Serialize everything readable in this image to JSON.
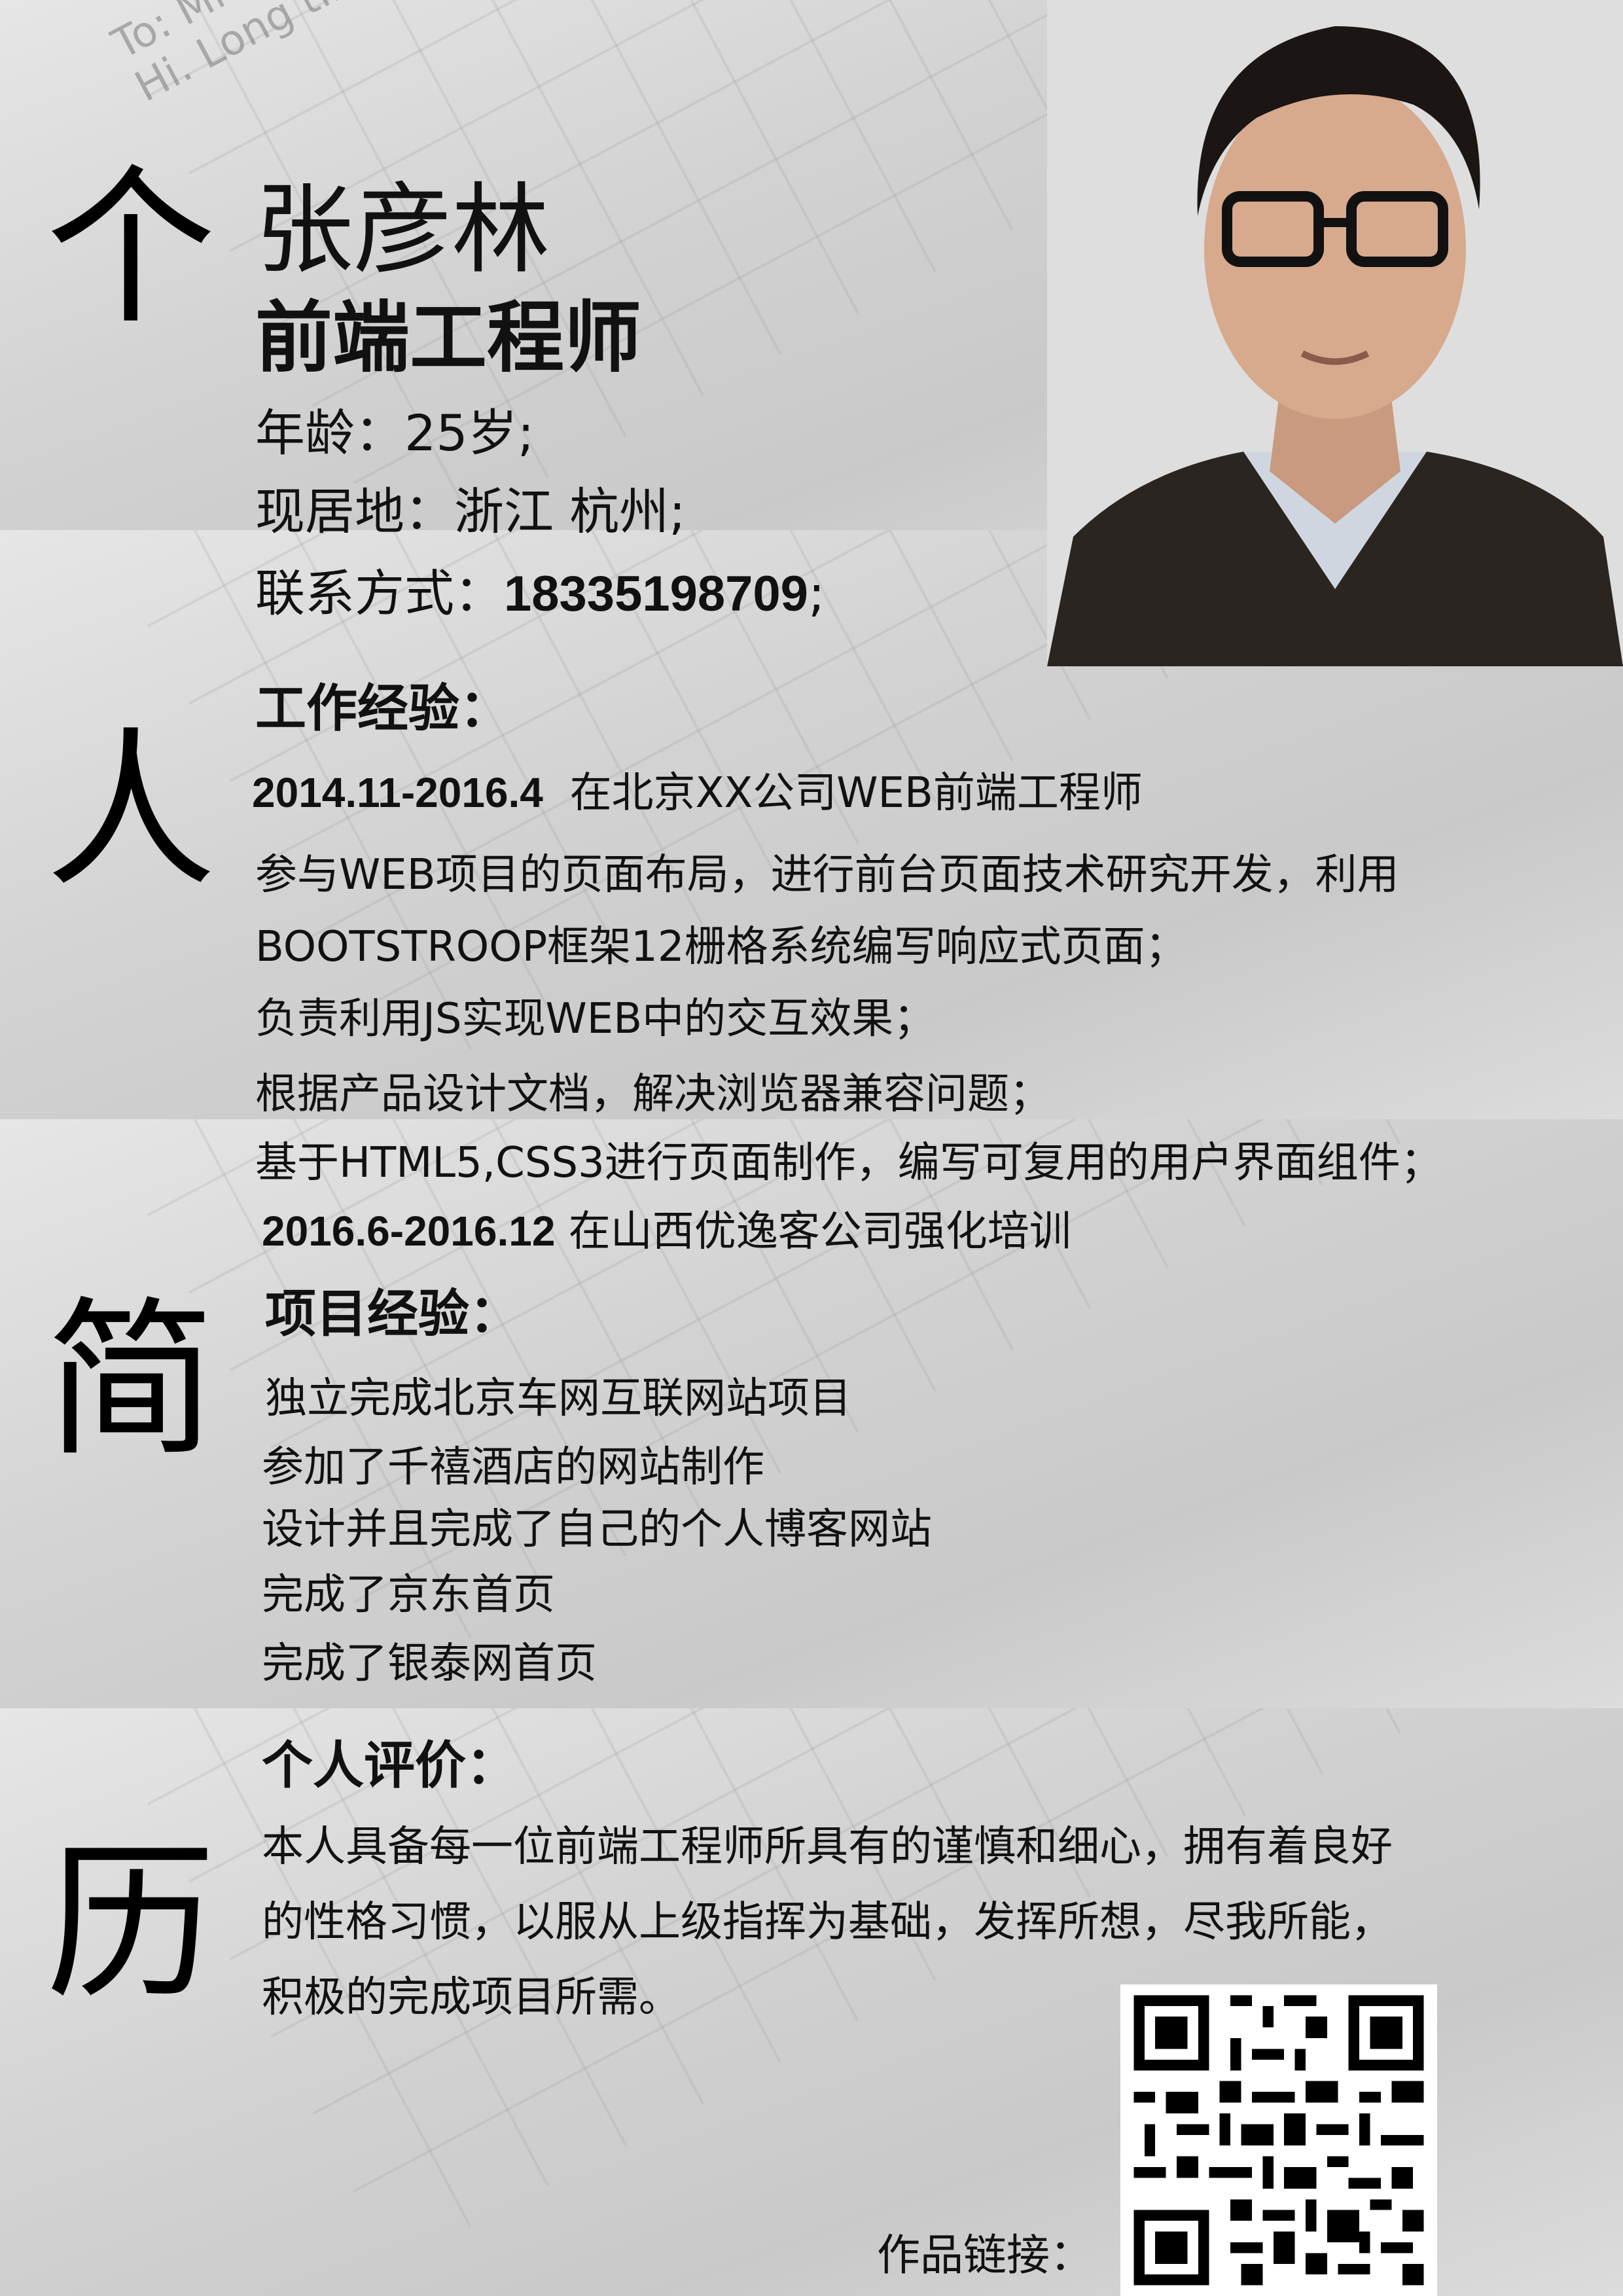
{
  "big_chars": [
    "个",
    "人",
    "简",
    "历"
  ],
  "profile": {
    "name": "张彦林",
    "title": "前端工程师",
    "age_label": "年龄：",
    "age_value": "25岁;",
    "location_label": "现居地：",
    "location_value": "浙江 杭州;",
    "contact_label": "联系方式：",
    "contact_value": "18335198709",
    "contact_suffix": ";"
  },
  "work": {
    "heading": "工作经验：",
    "job1_period": "2014.11-2016.4",
    "job1_desc": "在北京XX公司WEB前端工程师",
    "lines": [
      "参与WEB项目的页面布局，进行前台页面技术研究开发，利用",
      "BOOTSTROOP框架12栅格系统编写响应式页面；",
      "负责利用JS实现WEB中的交互效果；",
      "根据产品设计文档，解决浏览器兼容问题；",
      "基于HTML5,CSS3进行页面制作，编写可复用的用户界面组件；"
    ],
    "job2_period": "2016.6-2016.12",
    "job2_desc": "在山西优逸客公司强化培训"
  },
  "projects": {
    "heading": "项目经验：",
    "items": [
      "独立完成北京车网互联网站项目",
      "参加了千禧酒店的网站制作",
      "设计并且完成了自己的个人博客网站",
      "完成了京东首页",
      "完成了银泰网首页"
    ]
  },
  "evaluation": {
    "heading": "个人评价：",
    "lines": [
      "本人具备每一位前端工程师所具有的谨慎和细心，拥有着良好",
      "的性格习惯，以服从上级指挥为基础，发挥所想，尽我所能，",
      "积极的完成项目所需。"
    ]
  },
  "works_link_label": "作品链接：",
  "background_text": {
    "line1": "To: Mick",
    "line2": "Hi. Long time no see."
  },
  "icons": {
    "photo": "portrait-photo",
    "qr": "qr-code"
  }
}
